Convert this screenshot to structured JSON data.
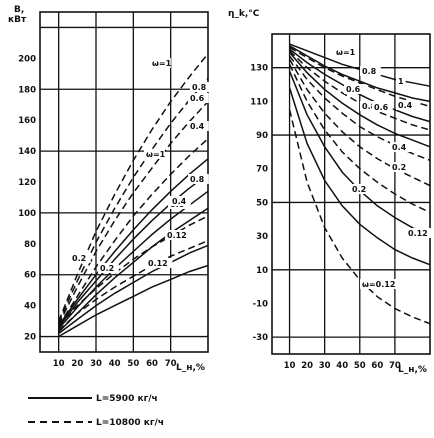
{
  "chart_data": [
    {
      "type": "line",
      "ylabel": "B, кВт",
      "xlabel": "L_н,%",
      "xlim": [
        0,
        90
      ],
      "ylim": [
        10,
        230
      ],
      "x_ticks": [
        "10",
        "20",
        "30",
        "40",
        "50",
        "60",
        "70"
      ],
      "y_ticks": [
        "20",
        "40",
        "60",
        "80",
        "100",
        "120",
        "140",
        "160",
        "180",
        "200"
      ],
      "series": [
        {
          "name": "ω=1",
          "style": "dashed",
          "points": [
            [
              10,
              30
            ],
            [
              20,
              60
            ],
            [
              30,
              88
            ],
            [
              40,
              112
            ],
            [
              50,
              134
            ],
            [
              60,
              154
            ],
            [
              70,
              172
            ],
            [
              80,
              188
            ],
            [
              90,
              203
            ]
          ]
        },
        {
          "name": "0.8",
          "style": "dashed",
          "points": [
            [
              10,
              29
            ],
            [
              20,
              56
            ],
            [
              30,
              81
            ],
            [
              40,
              103
            ],
            [
              50,
              123
            ],
            [
              60,
              141
            ],
            [
              70,
              158
            ],
            [
              80,
              173
            ],
            [
              90,
              187
            ]
          ]
        },
        {
          "name": "0.6",
          "style": "dashed",
          "points": [
            [
              10,
              28
            ],
            [
              20,
              52
            ],
            [
              30,
              75
            ],
            [
              40,
              95
            ],
            [
              50,
              113
            ],
            [
              60,
              129
            ],
            [
              70,
              145
            ],
            [
              80,
              159
            ],
            [
              90,
              172
            ]
          ]
        },
        {
          "name": "0.4",
          "style": "dashed",
          "points": [
            [
              10,
              27
            ],
            [
              20,
              46
            ],
            [
              30,
              65
            ],
            [
              40,
              82
            ],
            [
              50,
              98
            ],
            [
              60,
              112
            ],
            [
              70,
              125
            ],
            [
              80,
              137
            ],
            [
              90,
              148
            ]
          ]
        },
        {
          "name": "ω=1",
          "style": "solid",
          "points": [
            [
              10,
              27
            ],
            [
              20,
              44
            ],
            [
              30,
              60
            ],
            [
              40,
              75
            ],
            [
              50,
              89
            ],
            [
              60,
              102
            ],
            [
              70,
              114
            ],
            [
              80,
              125
            ],
            [
              90,
              135
            ]
          ]
        },
        {
          "name": "0.8",
          "style": "solid",
          "points": [
            [
              10,
              26
            ],
            [
              20,
              42
            ],
            [
              30,
              56
            ],
            [
              40,
              70
            ],
            [
              50,
              83
            ],
            [
              60,
              95
            ],
            [
              70,
              106
            ],
            [
              80,
              116
            ],
            [
              90,
              125
            ]
          ]
        },
        {
          "name": "0.6",
          "style": "solid",
          "points": [
            [
              10,
              25
            ],
            [
              20,
              39
            ],
            [
              30,
              52
            ],
            [
              40,
              64
            ],
            [
              50,
              75
            ],
            [
              60,
              86
            ],
            [
              70,
              96
            ],
            [
              80,
              105
            ],
            [
              90,
              114
            ]
          ]
        },
        {
          "name": "0.4",
          "style": "solid",
          "points": [
            [
              10,
              23
            ],
            [
              20,
              35
            ],
            [
              30,
              47
            ],
            [
              40,
              58
            ],
            [
              50,
              68
            ],
            [
              60,
              78
            ],
            [
              70,
              87
            ],
            [
              80,
              95
            ],
            [
              90,
              103
            ]
          ]
        },
        {
          "name": "0.2",
          "style": "dashed",
          "points": [
            [
              10,
              27
            ],
            [
              20,
              40
            ],
            [
              30,
              51
            ],
            [
              40,
              61
            ],
            [
              50,
              70
            ],
            [
              60,
              78
            ],
            [
              70,
              85
            ],
            [
              80,
              92
            ],
            [
              90,
              98
            ]
          ]
        },
        {
          "name": "0.12",
          "style": "dashed",
          "points": [
            [
              10,
              24
            ],
            [
              20,
              35
            ],
            [
              30,
              44
            ],
            [
              40,
              52
            ],
            [
              50,
              59
            ],
            [
              60,
              66
            ],
            [
              70,
              72
            ],
            [
              80,
              77
            ],
            [
              90,
              82
            ]
          ]
        },
        {
          "name": "0.2",
          "style": "solid",
          "points": [
            [
              10,
              22
            ],
            [
              20,
              31
            ],
            [
              30,
              40
            ],
            [
              40,
              48
            ],
            [
              50,
              55
            ],
            [
              60,
              62
            ],
            [
              70,
              68
            ],
            [
              80,
              74
            ],
            [
              90,
              79
            ]
          ]
        },
        {
          "name": "0.12",
          "style": "solid",
          "points": [
            [
              10,
              20
            ],
            [
              20,
              27
            ],
            [
              30,
              34
            ],
            [
              40,
              40
            ],
            [
              50,
              46
            ],
            [
              60,
              52
            ],
            [
              70,
              57
            ],
            [
              80,
              62
            ],
            [
              90,
              66
            ]
          ]
        }
      ]
    },
    {
      "type": "line",
      "ylabel": "η_k,°C",
      "xlabel": "L_н,%",
      "xlim": [
        0,
        90
      ],
      "ylim": [
        -40,
        150
      ],
      "x_ticks": [
        "10",
        "20",
        "30",
        "40",
        "50",
        "60",
        "70"
      ],
      "y_ticks": [
        "130",
        "110",
        "90",
        "70",
        "50",
        "30",
        "10",
        "-10",
        "-30"
      ],
      "series": [
        {
          "name": "ω=1",
          "style": "solid",
          "points": [
            [
              10,
              144
            ],
            [
              20,
              140
            ],
            [
              30,
              136
            ],
            [
              40,
              132
            ],
            [
              50,
              129
            ],
            [
              60,
              126
            ],
            [
              70,
              123
            ],
            [
              80,
              121
            ],
            [
              90,
              119
            ]
          ]
        },
        {
          "name": "0.8",
          "style": "solid",
          "points": [
            [
              10,
              143
            ],
            [
              20,
              137
            ],
            [
              30,
              131
            ],
            [
              40,
              126
            ],
            [
              50,
              122
            ],
            [
              60,
              118
            ],
            [
              70,
              115
            ],
            [
              80,
              112
            ],
            [
              90,
              110
            ]
          ]
        },
        {
          "name": "1",
          "style": "dashed",
          "points": [
            [
              10,
              142
            ],
            [
              20,
              136
            ],
            [
              30,
              130
            ],
            [
              40,
              125
            ],
            [
              50,
              121
            ],
            [
              60,
              117
            ],
            [
              70,
              113
            ],
            [
              80,
              110
            ],
            [
              90,
              107
            ]
          ]
        },
        {
          "name": "0.6",
          "style": "solid",
          "points": [
            [
              10,
              141
            ],
            [
              20,
              133
            ],
            [
              30,
              126
            ],
            [
              40,
              120
            ],
            [
              50,
              114
            ],
            [
              60,
              109
            ],
            [
              70,
              105
            ],
            [
              80,
              101
            ],
            [
              90,
              98
            ]
          ]
        },
        {
          "name": "0.8",
          "style": "dashed",
          "points": [
            [
              10,
              140
            ],
            [
              20,
              130
            ],
            [
              30,
              122
            ],
            [
              40,
              115
            ],
            [
              50,
              109
            ],
            [
              60,
              104
            ],
            [
              70,
              100
            ],
            [
              80,
              96
            ],
            [
              90,
              93
            ]
          ]
        },
        {
          "name": "0.4",
          "style": "solid",
          "points": [
            [
              10,
              139
            ],
            [
              20,
              127
            ],
            [
              30,
              117
            ],
            [
              40,
              109
            ],
            [
              50,
              102
            ],
            [
              60,
              96
            ],
            [
              70,
              91
            ],
            [
              80,
              87
            ],
            [
              90,
              83
            ]
          ]
        },
        {
          "name": "0.6",
          "style": "dashed",
          "points": [
            [
              10,
              137
            ],
            [
              20,
              123
            ],
            [
              30,
              112
            ],
            [
              40,
              103
            ],
            [
              50,
              95
            ],
            [
              60,
              89
            ],
            [
              70,
              84
            ],
            [
              80,
              79
            ],
            [
              90,
              75
            ]
          ]
        },
        {
          "name": "0.4",
          "style": "dashed",
          "points": [
            [
              10,
              135
            ],
            [
              20,
              117
            ],
            [
              30,
              103
            ],
            [
              40,
              92
            ],
            [
              50,
              83
            ],
            [
              60,
              76
            ],
            [
              70,
              70
            ],
            [
              80,
              65
            ],
            [
              90,
              60
            ]
          ]
        },
        {
          "name": "0.2",
          "style": "dashed",
          "points": [
            [
              10,
              132
            ],
            [
              20,
              110
            ],
            [
              30,
              93
            ],
            [
              40,
              80
            ],
            [
              50,
              70
            ],
            [
              60,
              62
            ],
            [
              70,
              55
            ],
            [
              80,
              49
            ],
            [
              90,
              44
            ]
          ]
        },
        {
          "name": "0.2",
          "style": "solid",
          "points": [
            [
              10,
              128
            ],
            [
              20,
              102
            ],
            [
              30,
              83
            ],
            [
              40,
              68
            ],
            [
              50,
              57
            ],
            [
              60,
              48
            ],
            [
              70,
              41
            ],
            [
              80,
              35
            ],
            [
              90,
              30
            ]
          ]
        },
        {
          "name": "0.12",
          "style": "solid",
          "points": [
            [
              10,
              118
            ],
            [
              20,
              85
            ],
            [
              30,
              63
            ],
            [
              40,
              48
            ],
            [
              50,
              37
            ],
            [
              60,
              29
            ],
            [
              70,
              22
            ],
            [
              80,
              17
            ],
            [
              90,
              13
            ]
          ]
        },
        {
          "name": "ω=0.12",
          "style": "dashed",
          "points": [
            [
              10,
              105
            ],
            [
              20,
              62
            ],
            [
              30,
              35
            ],
            [
              40,
              17
            ],
            [
              50,
              4
            ],
            [
              60,
              -6
            ],
            [
              70,
              -13
            ],
            [
              80,
              -18
            ],
            [
              90,
              -22
            ]
          ]
        }
      ]
    }
  ],
  "legend": [
    {
      "style": "solid",
      "label": "L=5900 кг/ч"
    },
    {
      "style": "dashed",
      "label": "L=10800 кг/ч"
    }
  ]
}
